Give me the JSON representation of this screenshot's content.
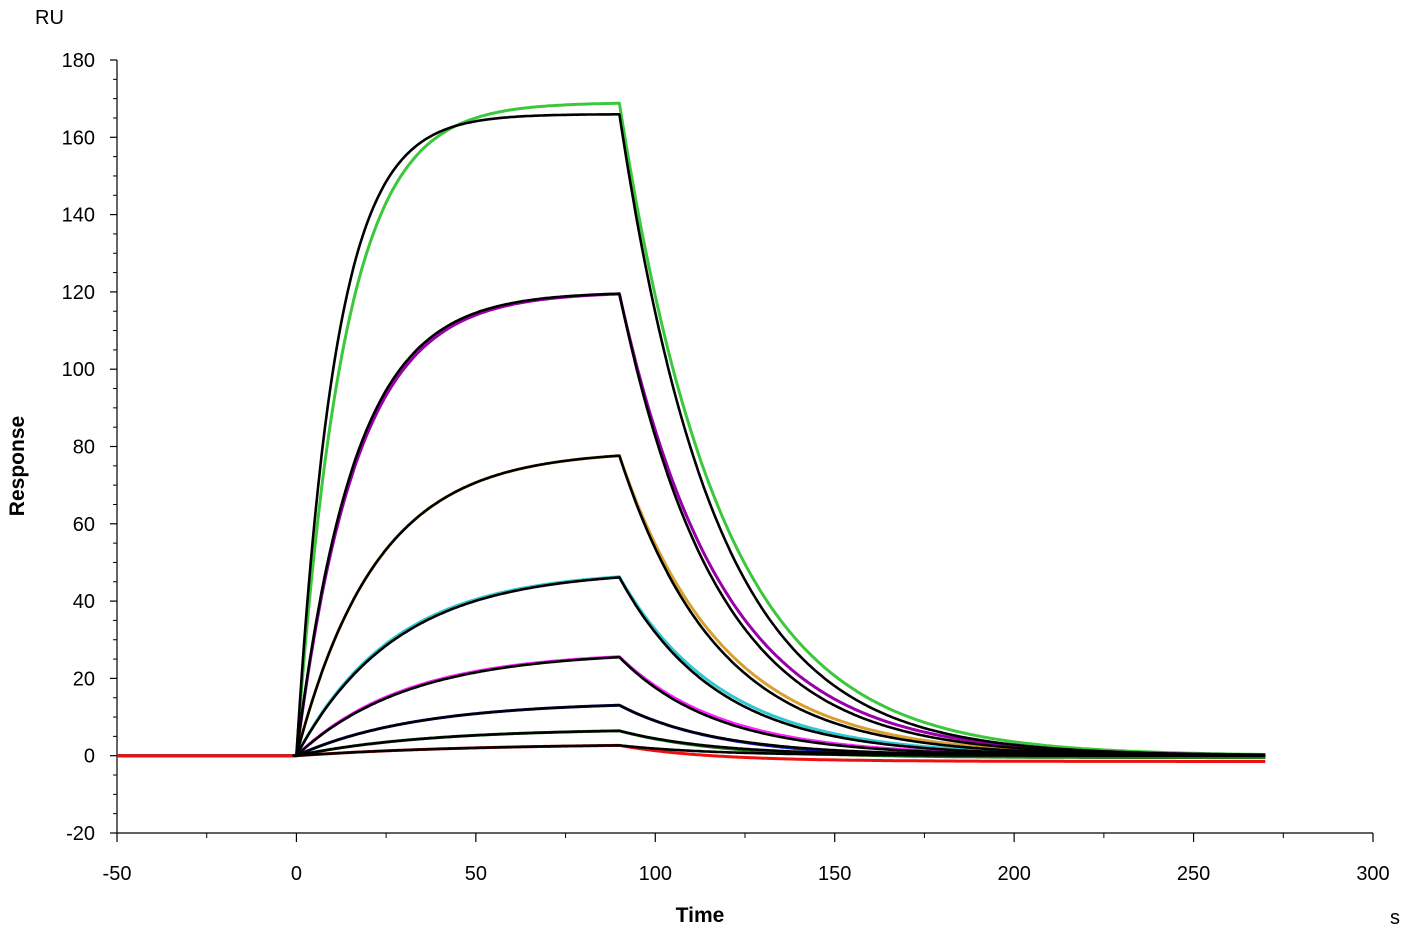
{
  "chart_data": {
    "type": "line",
    "xlabel": "Time",
    "ylabel": "Response",
    "x_unit": "s",
    "y_unit": "RU",
    "xlim": [
      -50,
      300
    ],
    "ylim": [
      -20,
      180
    ],
    "x_ticks": [
      -50,
      0,
      50,
      100,
      150,
      200,
      250,
      300
    ],
    "y_ticks": [
      -20,
      0,
      20,
      40,
      60,
      80,
      100,
      120,
      140,
      160,
      180
    ],
    "x_tick_labels": [
      "-50",
      "0",
      "50",
      "100",
      "150",
      "200",
      "250",
      "300"
    ],
    "y_tick_labels": [
      "-20",
      "0",
      "20",
      "40",
      "60",
      "80",
      "100",
      "120",
      "140",
      "160",
      "180"
    ],
    "grid": false,
    "legend": "none",
    "association_start": 0,
    "dissociation_start": 90,
    "end_time": 270,
    "series": [
      {
        "color": "#3cc83c",
        "kind": "measured",
        "plateau": 169,
        "kon": 0.075,
        "koff": 0.035,
        "offset": 0
      },
      {
        "color": "#000000",
        "kind": "fit",
        "plateau": 166,
        "kon": 0.09,
        "koff": 0.037,
        "offset": 0
      },
      {
        "color": "#9900aa",
        "kind": "measured",
        "plateau": 120,
        "kon": 0.06,
        "koff": 0.035,
        "offset": 0
      },
      {
        "color": "#000000",
        "kind": "fit",
        "plateau": 120,
        "kon": 0.062,
        "koff": 0.037,
        "offset": 0
      },
      {
        "color": "#d8a030",
        "kind": "measured",
        "plateau": 79,
        "kon": 0.045,
        "koff": 0.035,
        "offset": 0
      },
      {
        "color": "#000000",
        "kind": "fit",
        "plateau": 79,
        "kon": 0.045,
        "koff": 0.037,
        "offset": 0
      },
      {
        "color": "#30c8d0",
        "kind": "measured",
        "plateau": 48,
        "kon": 0.037,
        "koff": 0.035,
        "offset": 0
      },
      {
        "color": "#000000",
        "kind": "fit",
        "plateau": 48,
        "kon": 0.036,
        "koff": 0.037,
        "offset": 0
      },
      {
        "color": "#ff20ff",
        "kind": "measured",
        "plateau": 27,
        "kon": 0.033,
        "koff": 0.035,
        "offset": 0
      },
      {
        "color": "#000000",
        "kind": "fit",
        "plateau": 27,
        "kon": 0.032,
        "koff": 0.037,
        "offset": 0
      },
      {
        "color": "#1020d0",
        "kind": "measured",
        "plateau": 14,
        "kon": 0.03,
        "koff": 0.035,
        "offset": -0.5
      },
      {
        "color": "#000000",
        "kind": "fit",
        "plateau": 14,
        "kon": 0.03,
        "koff": 0.037,
        "offset": 0
      },
      {
        "color": "#1a7a1a",
        "kind": "measured",
        "plateau": 7,
        "kon": 0.028,
        "koff": 0.035,
        "offset": -0.5
      },
      {
        "color": "#000000",
        "kind": "fit",
        "plateau": 7,
        "kon": 0.028,
        "koff": 0.037,
        "offset": 0
      },
      {
        "color": "#ee1010",
        "kind": "measured",
        "plateau": 3.2,
        "kon": 0.02,
        "koff": 0.035,
        "offset": -1.5
      },
      {
        "color": "#000000",
        "kind": "fit",
        "plateau": 3.2,
        "kon": 0.02,
        "koff": 0.037,
        "offset": 0
      }
    ]
  }
}
